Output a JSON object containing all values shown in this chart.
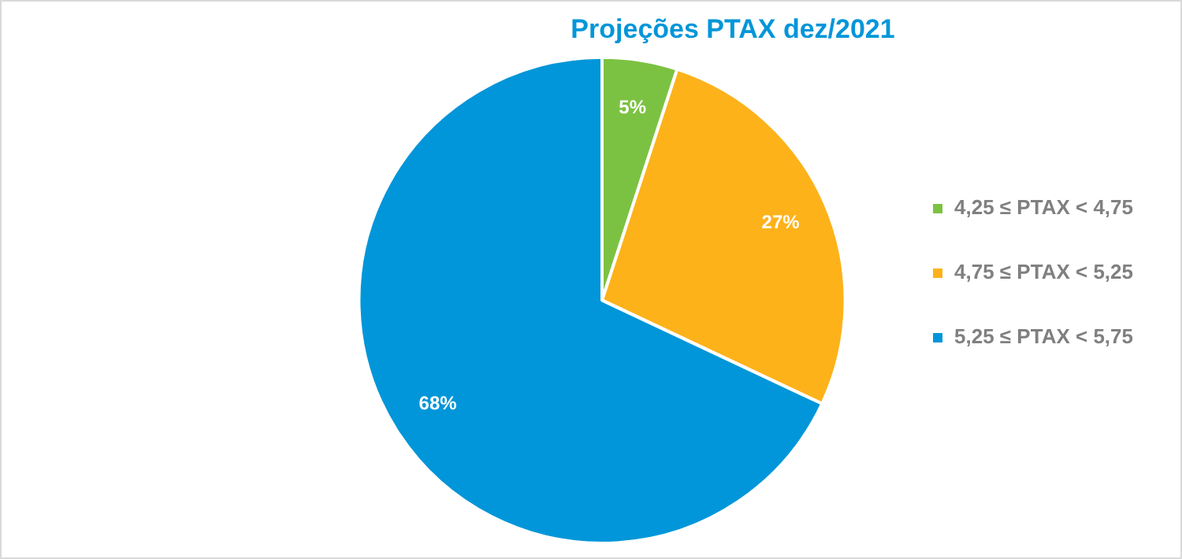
{
  "chart_data": {
    "type": "pie",
    "title": "Projeções PTAX dez/2021",
    "categories": [
      "4,25 ≤ PTAX < 4,75",
      "4,75 ≤ PTAX < 5,25",
      "5,25 ≤ PTAX < 5,75"
    ],
    "values": [
      5,
      27,
      68
    ],
    "colors": [
      "#7cc242",
      "#fdb21a",
      "#0096d9"
    ],
    "value_labels": [
      "5%",
      "27%",
      "68%"
    ],
    "legend": "right"
  }
}
